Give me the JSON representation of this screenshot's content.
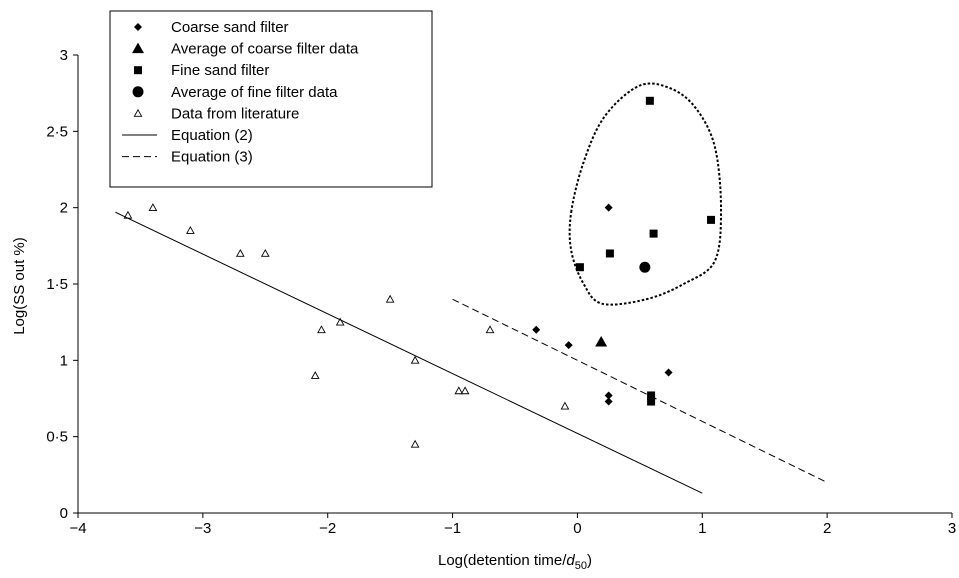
{
  "chart_data": {
    "type": "scatter",
    "title": "",
    "xlabel_main": "Log(detention time/",
    "xlabel_var": "d",
    "xlabel_sub": "50",
    "xlabel_close": ")",
    "ylabel": "Log(SS out %)",
    "xlim": [
      -4,
      3
    ],
    "ylim": [
      0,
      3
    ],
    "xticks": [
      {
        "v": -4,
        "label": "−4"
      },
      {
        "v": -3,
        "label": "−3"
      },
      {
        "v": -2,
        "label": "−2"
      },
      {
        "v": -1,
        "label": "−1"
      },
      {
        "v": 0,
        "label": "0"
      },
      {
        "v": 1,
        "label": "1"
      },
      {
        "v": 2,
        "label": "2"
      },
      {
        "v": 3,
        "label": "3"
      }
    ],
    "yticks": [
      {
        "v": 0,
        "label": "0"
      },
      {
        "v": 0.5,
        "label": "0·5"
      },
      {
        "v": 1,
        "label": "1"
      },
      {
        "v": 1.5,
        "label": "1·5"
      },
      {
        "v": 2,
        "label": "2"
      },
      {
        "v": 2.5,
        "label": "2·5"
      },
      {
        "v": 3,
        "label": "3"
      }
    ],
    "grid": false,
    "legend_position": "top-left",
    "series": [
      {
        "name": "Coarse sand filter",
        "marker": "diamond",
        "points": [
          [
            -0.33,
            1.2
          ],
          [
            -0.07,
            1.1
          ],
          [
            0.25,
            2.0
          ],
          [
            0.25,
            0.77
          ],
          [
            0.25,
            0.73
          ],
          [
            0.73,
            0.92
          ]
        ]
      },
      {
        "name": "Average of coarse filter data",
        "marker": "triangle-filled",
        "points": [
          [
            0.19,
            1.12
          ]
        ]
      },
      {
        "name": "Fine sand filter",
        "marker": "square",
        "points": [
          [
            0.58,
            2.7
          ],
          [
            0.02,
            1.61
          ],
          [
            0.26,
            1.7
          ],
          [
            0.61,
            1.83
          ],
          [
            1.07,
            1.92
          ],
          [
            0.59,
            0.77
          ],
          [
            0.59,
            0.73
          ]
        ]
      },
      {
        "name": "Average of fine filter data",
        "marker": "circle",
        "points": [
          [
            0.54,
            1.61
          ]
        ]
      },
      {
        "name": "Data from literature",
        "marker": "triangle-open",
        "points": [
          [
            -3.6,
            1.95
          ],
          [
            -3.4,
            2.0
          ],
          [
            -3.1,
            1.85
          ],
          [
            -2.7,
            1.7
          ],
          [
            -2.5,
            1.7
          ],
          [
            -2.1,
            0.9
          ],
          [
            -2.05,
            1.2
          ],
          [
            -1.9,
            1.25
          ],
          [
            -1.5,
            1.4
          ],
          [
            -1.3,
            1.0
          ],
          [
            -1.3,
            0.45
          ],
          [
            -0.95,
            0.8
          ],
          [
            -0.9,
            0.8
          ],
          [
            -0.7,
            1.2
          ],
          [
            -0.1,
            0.7
          ]
        ]
      },
      {
        "name": "Equation (2)",
        "marker": "solid-line",
        "points": [
          [
            -3.7,
            1.97
          ],
          [
            1.0,
            0.13
          ]
        ]
      },
      {
        "name": "Equation (3)",
        "marker": "dashed-line",
        "points": [
          [
            -1.0,
            1.4
          ],
          [
            2.0,
            0.2
          ]
        ]
      }
    ],
    "annotation_enclosure": {
      "style": "dotted",
      "points": [
        [
          -0.05,
          1.97
        ],
        [
          0.05,
          2.3
        ],
        [
          0.22,
          2.6
        ],
        [
          0.5,
          2.8
        ],
        [
          0.75,
          2.78
        ],
        [
          0.95,
          2.65
        ],
        [
          1.1,
          2.4
        ],
        [
          1.15,
          2.0
        ],
        [
          1.1,
          1.65
        ],
        [
          0.85,
          1.5
        ],
        [
          0.55,
          1.4
        ],
        [
          0.2,
          1.37
        ],
        [
          0.05,
          1.5
        ],
        [
          -0.05,
          1.72
        ]
      ]
    }
  }
}
